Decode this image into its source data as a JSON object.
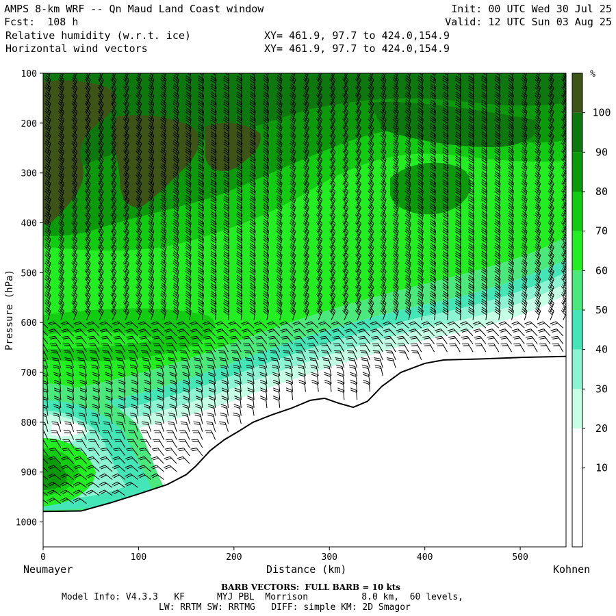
{
  "header": {
    "title": "AMPS 8-km WRF -- Qn Maud Land Coast window",
    "fcst": "Fcst:  108 h",
    "init": "Init: 00 UTC Wed 30 Jul 25",
    "valid": "Valid: 12 UTC Sun 03 Aug 25",
    "field1_label": "Relative humidity (w.r.t. ice)",
    "field1_xy": "XY= 461.9, 97.7 to 424.0,154.9",
    "field2_label": "Horizontal wind vectors",
    "field2_xy": "XY= 461.9, 97.7 to 424.0,154.9"
  },
  "chart_data": {
    "type": "heatmap",
    "xlabel": "Distance (km)",
    "ylabel": "Pressure (hPa)",
    "xlim": [
      0,
      548
    ],
    "ylim": [
      1050,
      100
    ],
    "x_ticks": [
      0,
      100,
      200,
      300,
      400,
      500
    ],
    "y_ticks": [
      100,
      200,
      300,
      400,
      500,
      600,
      700,
      800,
      900,
      1000
    ],
    "x_start_label": "Neumayer",
    "x_end_label": "Kohnen",
    "colorbar": {
      "unit": "%",
      "levels": [
        10,
        20,
        30,
        40,
        50,
        60,
        70,
        80,
        90,
        100
      ],
      "colors": [
        "#ffffff",
        "#ffffff",
        "#ffffff",
        "#c4ffe6",
        "#8cf4d2",
        "#44e6b8",
        "#4be87c",
        "#22ee22",
        "#11cc11",
        "#0a9a0a",
        "#0d780d",
        "#3d5416"
      ]
    },
    "terrain_hPa": [
      [
        0,
        979
      ],
      [
        40,
        978
      ],
      [
        70,
        962
      ],
      [
        100,
        944
      ],
      [
        130,
        925
      ],
      [
        150,
        905
      ],
      [
        160,
        888
      ],
      [
        175,
        857
      ],
      [
        190,
        835
      ],
      [
        205,
        818
      ],
      [
        220,
        800
      ],
      [
        240,
        785
      ],
      [
        260,
        772
      ],
      [
        280,
        756
      ],
      [
        295,
        752
      ],
      [
        310,
        762
      ],
      [
        325,
        770
      ],
      [
        340,
        758
      ],
      [
        355,
        728
      ],
      [
        375,
        700
      ],
      [
        400,
        682
      ],
      [
        420,
        675
      ],
      [
        460,
        673
      ],
      [
        500,
        670
      ],
      [
        548,
        668
      ]
    ]
  },
  "footer": {
    "barb_note": "BARB VECTORS:  FULL BARB = 10 kts",
    "model_info": "Model Info: V4.3.3   KF      MYJ PBL  Morrison          8.0 km,  60 levels,",
    "model_info2": "LW: RRTM SW: RRTMG   DIFF: simple KM: 2D Smagor"
  }
}
